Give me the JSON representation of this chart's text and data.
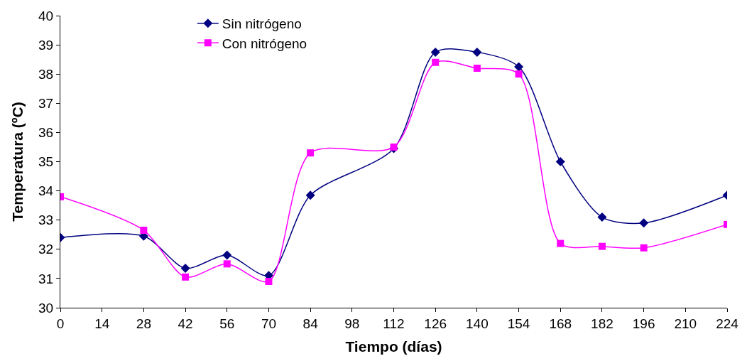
{
  "chart_data": {
    "type": "line",
    "xlabel": "Tiempo (días)",
    "ylabel": "Temperatura (ºC)",
    "x": [
      0,
      28,
      42,
      56,
      70,
      84,
      112,
      126,
      140,
      154,
      168,
      182,
      196,
      224
    ],
    "series": [
      {
        "name": "Sin nitrógeno",
        "color": "#000080",
        "marker": "diamond",
        "values": [
          32.4,
          32.45,
          31.35,
          31.8,
          31.1,
          33.85,
          35.45,
          38.75,
          38.75,
          38.25,
          35.0,
          33.1,
          32.9,
          33.85
        ]
      },
      {
        "name": "Con nitrógeno",
        "color": "#ff00ff",
        "marker": "square",
        "values": [
          33.8,
          32.65,
          31.05,
          31.5,
          30.9,
          35.3,
          35.5,
          38.4,
          38.2,
          38.0,
          32.2,
          32.1,
          32.05,
          32.85
        ]
      }
    ],
    "xlim": [
      0,
      224
    ],
    "xticks": [
      0,
      14,
      28,
      42,
      56,
      70,
      84,
      98,
      112,
      126,
      140,
      154,
      168,
      182,
      196,
      210,
      224
    ],
    "ylim": [
      30,
      40
    ],
    "yticks": [
      30,
      31,
      32,
      33,
      34,
      35,
      36,
      37,
      38,
      39,
      40
    ],
    "legend": "top left",
    "line_style": "solid"
  }
}
